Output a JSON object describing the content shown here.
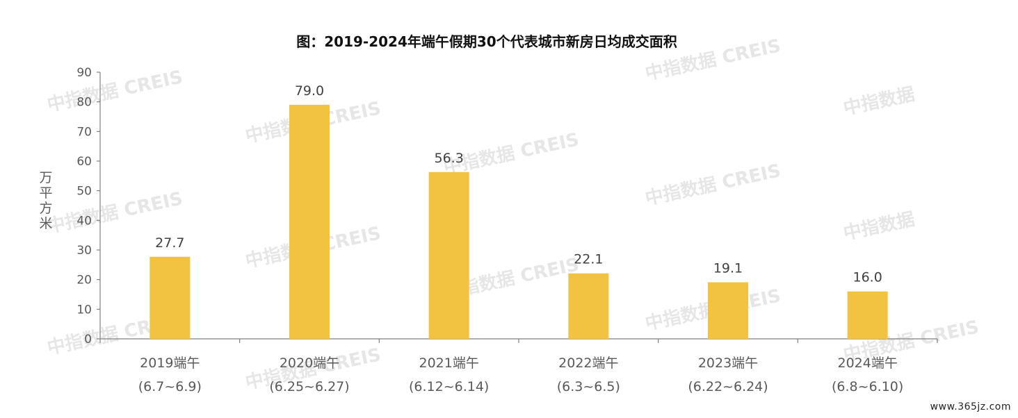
{
  "chart_data": {
    "type": "bar",
    "title": "图：2019-2024年端午假期30个代表城市新房日均成交面积",
    "ylabel": "万平方米",
    "xlabel": "",
    "ylim": [
      0,
      90
    ],
    "yticks": [
      "0",
      "10",
      "20",
      "30",
      "40",
      "50",
      "60",
      "70",
      "80",
      "90"
    ],
    "categories": [
      [
        "2019端午",
        "(6.7~6.9)"
      ],
      [
        "2020端午",
        "(6.25~6.27)"
      ],
      [
        "2021端午",
        "(6.12~6.14)"
      ],
      [
        "2022端午",
        "(6.3~6.5)"
      ],
      [
        "2023端午",
        "(6.22~6.24)"
      ],
      [
        "2024端午",
        "(6.8~6.10)"
      ]
    ],
    "values": [
      27.7,
      79.0,
      56.3,
      22.1,
      19.1,
      16.0
    ],
    "value_labels": [
      "27.7",
      "79.0",
      "56.3",
      "22.1",
      "19.1",
      "16.0"
    ],
    "bar_color": "#f2c241",
    "grid": false,
    "watermark": [
      "中指数据",
      "CREIS"
    ]
  },
  "footer": {
    "site": "www.365jz.com"
  }
}
